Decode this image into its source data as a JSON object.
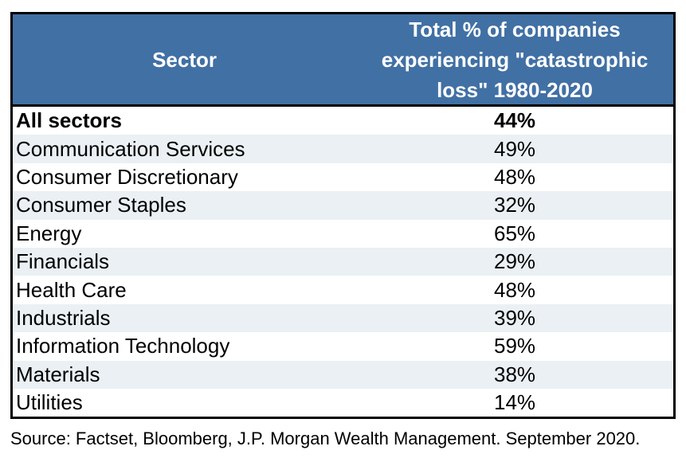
{
  "table": {
    "header": {
      "sector_label": "Sector",
      "total_label": "Total % of companies experiencing \"catastrophic loss\" 1980-2020"
    },
    "rows": [
      {
        "sector": "All sectors",
        "value": "44%"
      },
      {
        "sector": "Communication Services",
        "value": "49%"
      },
      {
        "sector": "Consumer Discretionary",
        "value": "48%"
      },
      {
        "sector": "Consumer Staples",
        "value": "32%"
      },
      {
        "sector": "Energy",
        "value": "65%"
      },
      {
        "sector": "Financials",
        "value": "29%"
      },
      {
        "sector": "Health Care",
        "value": "48%"
      },
      {
        "sector": "Industrials",
        "value": "39%"
      },
      {
        "sector": "Information Technology",
        "value": "59%"
      },
      {
        "sector": "Materials",
        "value": "38%"
      },
      {
        "sector": "Utilities",
        "value": "14%"
      }
    ]
  },
  "source": "Source: Factset, Bloomberg, J.P. Morgan Wealth Management. September 2020.",
  "colors": {
    "header_bg": "#4170A4",
    "header_text": "#FFFFFF",
    "row_alt_bg": "#EAF0F4",
    "row_bg": "#FFFFFF",
    "border": "#000000",
    "body_text": "#000000"
  },
  "chart_data": {
    "type": "table",
    "title": "",
    "columns": [
      "Sector",
      "Total % of companies experiencing \"catastrophic loss\" 1980-2020"
    ],
    "categories": [
      "All sectors",
      "Communication Services",
      "Consumer Discretionary",
      "Consumer Staples",
      "Energy",
      "Financials",
      "Health Care",
      "Industrials",
      "Information Technology",
      "Materials",
      "Utilities"
    ],
    "values": [
      44,
      49,
      48,
      32,
      65,
      29,
      48,
      39,
      59,
      38,
      14
    ],
    "units": "%",
    "source": "Source: Factset, Bloomberg, J.P. Morgan Wealth Management. September 2020."
  }
}
